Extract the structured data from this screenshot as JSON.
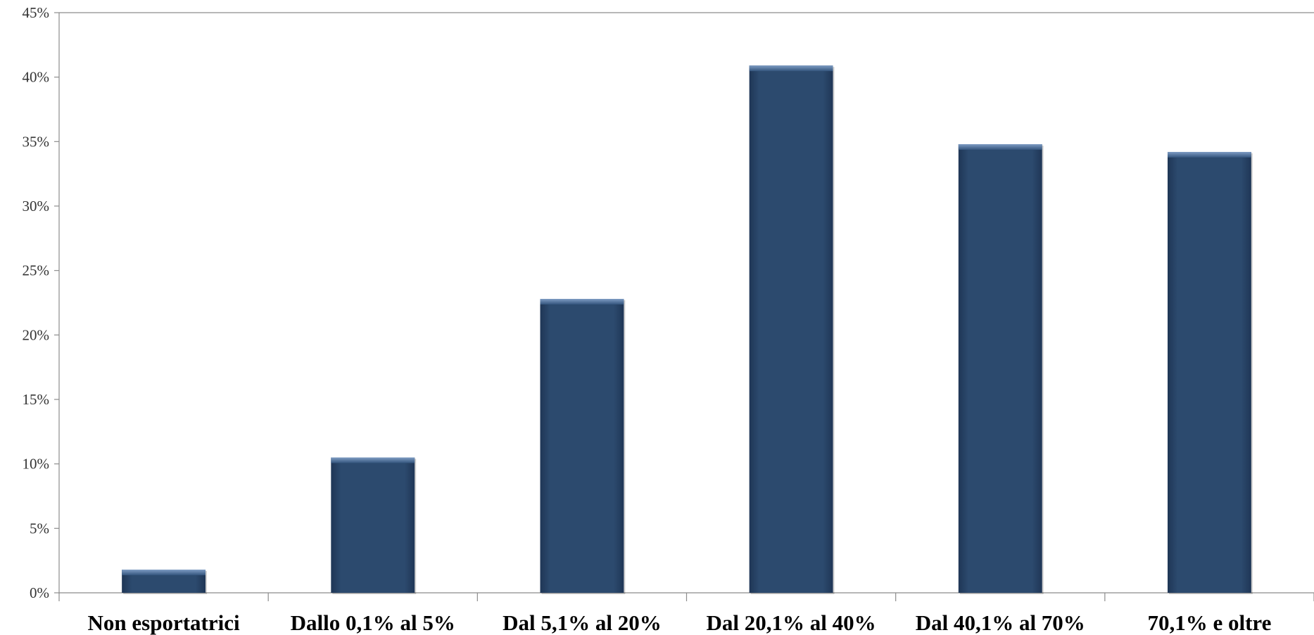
{
  "chart_data": {
    "type": "bar",
    "categories": [
      "Non esportatrici",
      "Dallo 0,1% al 5%",
      "Dal 5,1% al 20%",
      "Dal 20,1% al 40%",
      "Dal 40,1% al 70%",
      "70,1% e oltre"
    ],
    "values": [
      1.8,
      10.5,
      22.8,
      40.9,
      34.8,
      34.2
    ],
    "value_unit": "%",
    "ylim": [
      0,
      45
    ],
    "yticks": [
      0,
      5,
      10,
      15,
      20,
      25,
      30,
      35,
      40,
      45
    ],
    "ytick_labels": [
      "0%",
      "5%",
      "10%",
      "15%",
      "20%",
      "25%",
      "30%",
      "35%",
      "40%",
      "45%"
    ],
    "grid": false,
    "legend": "none",
    "colors": {
      "bar": "#2c4a6e",
      "bar_top": "#5a7aa3",
      "axis": "#8c8c8c"
    }
  }
}
